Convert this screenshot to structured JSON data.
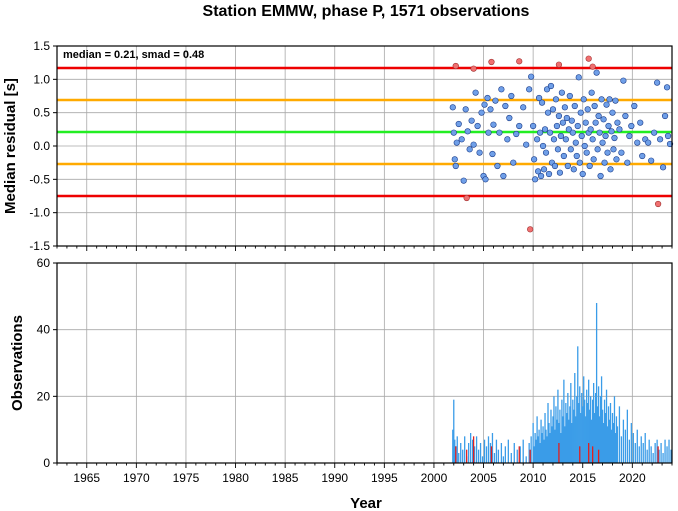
{
  "title": "Station EMMW, phase P, 1571 observations",
  "chart_data": [
    {
      "type": "scatter",
      "ylabel": "Median residual [s]",
      "annotation": "median = 0.21, smad = 0.48",
      "xlim": [
        1962,
        2024
      ],
      "ylim": [
        -1.5,
        1.5
      ],
      "yticks": [
        "1.5",
        "1.0",
        "0.5",
        "0.0",
        "-0.5",
        "-1.0",
        "-1.5"
      ],
      "ytick_values": [
        1.5,
        1.0,
        0.5,
        0.0,
        -0.5,
        -1.0,
        -1.5
      ],
      "grid": true,
      "colors": {
        "inlier": "#6f9fe8",
        "outlier": "#f07070",
        "median_line": "#22ee22",
        "one_smad": "#ffaa00",
        "two_smad": "#ee0000"
      },
      "hlines": [
        {
          "y": 0.21,
          "kind": "median_line"
        },
        {
          "y": 0.69,
          "kind": "one_smad"
        },
        {
          "y": -0.27,
          "kind": "one_smad"
        },
        {
          "y": 1.17,
          "kind": "two_smad"
        },
        {
          "y": -0.75,
          "kind": "two_smad"
        }
      ],
      "outliers": [
        [
          2002.2,
          1.2
        ],
        [
          2003.3,
          -0.78
        ],
        [
          2004.0,
          1.16
        ],
        [
          2005.8,
          1.26
        ],
        [
          2008.6,
          1.27
        ],
        [
          2009.7,
          -1.25
        ],
        [
          2012.6,
          1.22
        ],
        [
          2015.6,
          1.31
        ],
        [
          2016.0,
          1.19
        ],
        [
          2022.6,
          -0.87
        ]
      ],
      "inliers": [
        [
          2001.9,
          0.58
        ],
        [
          2002.0,
          0.2
        ],
        [
          2002.1,
          -0.2
        ],
        [
          2002.2,
          -0.3
        ],
        [
          2002.3,
          0.05
        ],
        [
          2002.5,
          0.33
        ],
        [
          2002.8,
          0.1
        ],
        [
          2003.0,
          -0.52
        ],
        [
          2003.2,
          0.55
        ],
        [
          2003.4,
          0.22
        ],
        [
          2003.6,
          -0.05
        ],
        [
          2003.8,
          0.38
        ],
        [
          2004.0,
          0.02
        ],
        [
          2004.2,
          0.8
        ],
        [
          2004.4,
          0.3
        ],
        [
          2004.6,
          -0.1
        ],
        [
          2004.8,
          0.5
        ],
        [
          2005.0,
          -0.45
        ],
        [
          2005.1,
          0.62
        ],
        [
          2005.2,
          -0.5
        ],
        [
          2005.4,
          0.72
        ],
        [
          2005.5,
          0.2
        ],
        [
          2005.7,
          0.55
        ],
        [
          2005.9,
          -0.12
        ],
        [
          2006.0,
          0.32
        ],
        [
          2006.2,
          0.68
        ],
        [
          2006.4,
          -0.3
        ],
        [
          2006.6,
          0.2
        ],
        [
          2006.8,
          0.85
        ],
        [
          2007.0,
          -0.45
        ],
        [
          2007.2,
          0.6
        ],
        [
          2007.4,
          0.1
        ],
        [
          2007.6,
          0.42
        ],
        [
          2007.8,
          0.75
        ],
        [
          2008.0,
          -0.25
        ],
        [
          2008.3,
          0.18
        ],
        [
          2008.6,
          0.3
        ],
        [
          2009.0,
          0.58
        ],
        [
          2009.3,
          0.02
        ],
        [
          2009.6,
          0.85
        ],
        [
          2009.8,
          1.04
        ],
        [
          2010.0,
          0.3
        ],
        [
          2010.1,
          -0.2
        ],
        [
          2010.2,
          -0.5
        ],
        [
          2010.4,
          0.1
        ],
        [
          2010.5,
          -0.38
        ],
        [
          2010.6,
          0.72
        ],
        [
          2010.7,
          0.2
        ],
        [
          2010.8,
          -0.45
        ],
        [
          2010.9,
          0.65
        ],
        [
          2011.0,
          0.0
        ],
        [
          2011.1,
          -0.35
        ],
        [
          2011.2,
          0.25
        ],
        [
          2011.3,
          -0.1
        ],
        [
          2011.4,
          0.85
        ],
        [
          2011.5,
          0.5
        ],
        [
          2011.6,
          -0.42
        ],
        [
          2011.7,
          0.2
        ],
        [
          2011.8,
          0.9
        ],
        [
          2011.9,
          -0.25
        ],
        [
          2012.0,
          0.55
        ],
        [
          2012.1,
          0.1
        ],
        [
          2012.2,
          -0.3
        ],
        [
          2012.3,
          0.7
        ],
        [
          2012.4,
          0.3
        ],
        [
          2012.5,
          -0.05
        ],
        [
          2012.6,
          0.45
        ],
        [
          2012.7,
          -0.4
        ],
        [
          2012.8,
          0.15
        ],
        [
          2012.9,
          0.8
        ],
        [
          2013.0,
          0.35
        ],
        [
          2013.1,
          -0.15
        ],
        [
          2013.2,
          0.58
        ],
        [
          2013.3,
          0.1
        ],
        [
          2013.4,
          0.42
        ],
        [
          2013.5,
          -0.3
        ],
        [
          2013.6,
          0.25
        ],
        [
          2013.7,
          0.75
        ],
        [
          2013.8,
          -0.05
        ],
        [
          2013.9,
          0.38
        ],
        [
          2014.0,
          0.2
        ],
        [
          2014.1,
          -0.35
        ],
        [
          2014.2,
          0.6
        ],
        [
          2014.3,
          0.05
        ],
        [
          2014.4,
          -0.15
        ],
        [
          2014.5,
          0.3
        ],
        [
          2014.6,
          1.03
        ],
        [
          2014.7,
          -0.25
        ],
        [
          2014.8,
          0.5
        ],
        [
          2014.9,
          0.15
        ],
        [
          2015.0,
          -0.42
        ],
        [
          2015.1,
          0.7
        ],
        [
          2015.2,
          0.0
        ],
        [
          2015.3,
          0.35
        ],
        [
          2015.4,
          -0.1
        ],
        [
          2015.5,
          0.55
        ],
        [
          2015.6,
          0.2
        ],
        [
          2015.7,
          -0.3
        ],
        [
          2015.8,
          0.25
        ],
        [
          2015.9,
          0.8
        ],
        [
          2016.0,
          0.1
        ],
        [
          2016.1,
          -0.2
        ],
        [
          2016.2,
          0.6
        ],
        [
          2016.3,
          0.35
        ],
        [
          2016.4,
          1.1
        ],
        [
          2016.5,
          -0.05
        ],
        [
          2016.6,
          0.45
        ],
        [
          2016.7,
          0.2
        ],
        [
          2016.8,
          -0.45
        ],
        [
          2016.9,
          0.7
        ],
        [
          2017.0,
          0.05
        ],
        [
          2017.1,
          0.4
        ],
        [
          2017.2,
          -0.25
        ],
        [
          2017.3,
          0.15
        ],
        [
          2017.4,
          0.62
        ],
        [
          2017.5,
          -0.1
        ],
        [
          2017.6,
          0.3
        ],
        [
          2017.7,
          0.7
        ],
        [
          2017.8,
          -0.35
        ],
        [
          2017.9,
          0.22
        ],
        [
          2018.0,
          0.5
        ],
        [
          2018.1,
          -0.05
        ],
        [
          2018.2,
          0.12
        ],
        [
          2018.3,
          0.68
        ],
        [
          2018.4,
          -0.2
        ],
        [
          2018.5,
          0.35
        ],
        [
          2018.7,
          0.25
        ],
        [
          2018.9,
          -0.1
        ],
        [
          2019.1,
          0.98
        ],
        [
          2019.3,
          0.45
        ],
        [
          2019.5,
          -0.25
        ],
        [
          2019.7,
          0.15
        ],
        [
          2019.9,
          0.3
        ],
        [
          2020.2,
          0.6
        ],
        [
          2020.5,
          0.05
        ],
        [
          2020.8,
          0.35
        ],
        [
          2021.0,
          -0.15
        ],
        [
          2021.3,
          0.1
        ],
        [
          2021.6,
          0.05
        ],
        [
          2021.9,
          -0.22
        ],
        [
          2022.2,
          0.2
        ],
        [
          2022.5,
          0.95
        ],
        [
          2022.8,
          0.1
        ],
        [
          2023.1,
          -0.32
        ],
        [
          2023.3,
          0.45
        ],
        [
          2023.5,
          0.88
        ],
        [
          2023.6,
          0.15
        ],
        [
          2023.8,
          0.03
        ]
      ]
    },
    {
      "type": "bar",
      "xlabel": "Year",
      "ylabel": "Observations",
      "xlim": [
        1962,
        2024
      ],
      "ylim": [
        0,
        60
      ],
      "xticks": [
        "1965",
        "1970",
        "1975",
        "1980",
        "1985",
        "1990",
        "1995",
        "2000",
        "2005",
        "2010",
        "2015",
        "2020"
      ],
      "xtick_values": [
        1965,
        1970,
        1975,
        1980,
        1985,
        1990,
        1995,
        2000,
        2005,
        2010,
        2015,
        2020
      ],
      "yticks": [
        "60",
        "40",
        "20",
        "0"
      ],
      "ytick_values": [
        60,
        40,
        20,
        0
      ],
      "grid": true,
      "colors": {
        "bar": "#3a9ce8",
        "bar_outlier": "#e02020"
      },
      "bars": [
        [
          2001.9,
          10
        ],
        [
          2002.0,
          19
        ],
        [
          2002.1,
          7
        ],
        [
          2002.2,
          5
        ],
        [
          2002.35,
          8
        ],
        [
          2002.5,
          3
        ],
        [
          2002.7,
          6
        ],
        [
          2002.9,
          4
        ],
        [
          2003.1,
          8
        ],
        [
          2003.3,
          2
        ],
        [
          2003.5,
          6
        ],
        [
          2003.7,
          9
        ],
        [
          2003.9,
          7
        ],
        [
          2004.1,
          5
        ],
        [
          2004.3,
          8
        ],
        [
          2004.5,
          4
        ],
        [
          2004.7,
          6
        ],
        [
          2004.9,
          2
        ],
        [
          2005.1,
          7
        ],
        [
          2005.3,
          5
        ],
        [
          2005.5,
          8
        ],
        [
          2005.7,
          6
        ],
        [
          2005.9,
          9
        ],
        [
          2006.1,
          3
        ],
        [
          2006.3,
          7
        ],
        [
          2006.5,
          4
        ],
        [
          2006.8,
          6
        ],
        [
          2007.0,
          2
        ],
        [
          2007.2,
          5
        ],
        [
          2007.5,
          7
        ],
        [
          2007.8,
          3
        ],
        [
          2008.1,
          6
        ],
        [
          2008.4,
          4
        ],
        [
          2008.7,
          5
        ],
        [
          2009.0,
          7
        ],
        [
          2009.3,
          2
        ],
        [
          2009.6,
          6
        ],
        [
          2009.8,
          8
        ],
        [
          2010.0,
          12
        ],
        [
          2010.1,
          5
        ],
        [
          2010.2,
          9
        ],
        [
          2010.3,
          7
        ],
        [
          2010.4,
          14
        ],
        [
          2010.5,
          8
        ],
        [
          2010.6,
          10
        ],
        [
          2010.7,
          6
        ],
        [
          2010.8,
          13
        ],
        [
          2010.9,
          9
        ],
        [
          2011.0,
          11
        ],
        [
          2011.1,
          7
        ],
        [
          2011.2,
          15
        ],
        [
          2011.3,
          10
        ],
        [
          2011.4,
          8
        ],
        [
          2011.5,
          18
        ],
        [
          2011.6,
          12
        ],
        [
          2011.7,
          9
        ],
        [
          2011.8,
          16
        ],
        [
          2011.9,
          11
        ],
        [
          2012.0,
          14
        ],
        [
          2012.1,
          20
        ],
        [
          2012.2,
          10
        ],
        [
          2012.3,
          17
        ],
        [
          2012.4,
          13
        ],
        [
          2012.5,
          22
        ],
        [
          2012.6,
          12
        ],
        [
          2012.7,
          16
        ],
        [
          2012.8,
          9
        ],
        [
          2012.9,
          19
        ],
        [
          2013.0,
          14
        ],
        [
          2013.1,
          25
        ],
        [
          2013.2,
          11
        ],
        [
          2013.3,
          18
        ],
        [
          2013.4,
          15
        ],
        [
          2013.5,
          21
        ],
        [
          2013.6,
          13
        ],
        [
          2013.7,
          17
        ],
        [
          2013.8,
          24
        ],
        [
          2013.9,
          12
        ],
        [
          2014.0,
          19
        ],
        [
          2014.1,
          16
        ],
        [
          2014.2,
          27
        ],
        [
          2014.3,
          14
        ],
        [
          2014.4,
          20
        ],
        [
          2014.5,
          35
        ],
        [
          2014.6,
          18
        ],
        [
          2014.7,
          23
        ],
        [
          2014.8,
          15
        ],
        [
          2014.9,
          21
        ],
        [
          2015.0,
          17
        ],
        [
          2015.1,
          26
        ],
        [
          2015.2,
          19
        ],
        [
          2015.3,
          14
        ],
        [
          2015.4,
          22
        ],
        [
          2015.5,
          18
        ],
        [
          2015.6,
          25
        ],
        [
          2015.7,
          16
        ],
        [
          2015.8,
          20
        ],
        [
          2015.9,
          13
        ],
        [
          2016.0,
          19
        ],
        [
          2016.1,
          24
        ],
        [
          2016.2,
          15
        ],
        [
          2016.3,
          21
        ],
        [
          2016.4,
          48
        ],
        [
          2016.5,
          17
        ],
        [
          2016.6,
          23
        ],
        [
          2016.7,
          14
        ],
        [
          2016.8,
          20
        ],
        [
          2016.9,
          26
        ],
        [
          2017.0,
          16
        ],
        [
          2017.1,
          12
        ],
        [
          2017.2,
          19
        ],
        [
          2017.3,
          15
        ],
        [
          2017.4,
          22
        ],
        [
          2017.5,
          11
        ],
        [
          2017.6,
          17
        ],
        [
          2017.7,
          13
        ],
        [
          2017.8,
          18
        ],
        [
          2017.9,
          10
        ],
        [
          2018.0,
          15
        ],
        [
          2018.1,
          12
        ],
        [
          2018.2,
          20
        ],
        [
          2018.3,
          9
        ],
        [
          2018.4,
          14
        ],
        [
          2018.5,
          11
        ],
        [
          2018.7,
          17
        ],
        [
          2018.9,
          8
        ],
        [
          2019.1,
          13
        ],
        [
          2019.3,
          10
        ],
        [
          2019.5,
          16
        ],
        [
          2019.7,
          7
        ],
        [
          2019.9,
          12
        ],
        [
          2020.1,
          9
        ],
        [
          2020.3,
          6
        ],
        [
          2020.5,
          10
        ],
        [
          2020.7,
          5
        ],
        [
          2020.9,
          8
        ],
        [
          2021.1,
          6
        ],
        [
          2021.3,
          9
        ],
        [
          2021.5,
          4
        ],
        [
          2021.7,
          7
        ],
        [
          2021.9,
          5
        ],
        [
          2022.1,
          3
        ],
        [
          2022.3,
          6
        ],
        [
          2022.5,
          7
        ],
        [
          2022.7,
          4
        ],
        [
          2022.9,
          6
        ],
        [
          2023.1,
          3
        ],
        [
          2023.3,
          7
        ],
        [
          2023.5,
          5
        ],
        [
          2023.7,
          7
        ],
        [
          2023.9,
          4
        ]
      ],
      "outlier_bars": [
        [
          2002.2,
          5
        ],
        [
          2003.3,
          4
        ],
        [
          2004.0,
          8
        ],
        [
          2005.8,
          5
        ],
        [
          2008.6,
          5
        ],
        [
          2009.7,
          4
        ],
        [
          2012.6,
          6
        ],
        [
          2014.7,
          5
        ],
        [
          2015.6,
          6
        ],
        [
          2016.0,
          5
        ],
        [
          2016.6,
          4
        ],
        [
          2022.6,
          5
        ]
      ]
    }
  ]
}
